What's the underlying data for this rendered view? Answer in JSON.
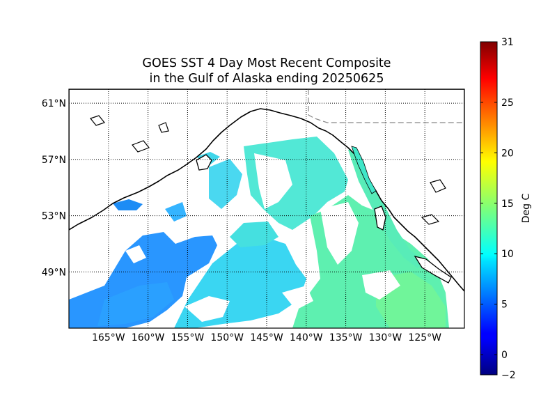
{
  "title": {
    "line1": "GOES SST 4 Day Most Recent Composite",
    "line2": "in the Gulf of Alaska ending 20250625"
  },
  "map": {
    "projection": "cylindrical",
    "lon_range": [
      -170,
      -120
    ],
    "lat_range": [
      45,
      62
    ],
    "meridians": [
      {
        "lon": -165,
        "label": "165°W"
      },
      {
        "lon": -160,
        "label": "160°W"
      },
      {
        "lon": -155,
        "label": "155°W"
      },
      {
        "lon": -150,
        "label": "150°W"
      },
      {
        "lon": -145,
        "label": "145°W"
      },
      {
        "lon": -140,
        "label": "140°W"
      },
      {
        "lon": -135,
        "label": "135°W"
      },
      {
        "lon": -130,
        "label": "130°W"
      },
      {
        "lon": -125,
        "label": "125°W"
      }
    ],
    "parallels": [
      {
        "lat": 61,
        "label": "61°N"
      },
      {
        "lat": 57,
        "label": "57°N"
      },
      {
        "lat": 53,
        "label": "53°N"
      },
      {
        "lat": 49,
        "label": "49°N"
      }
    ],
    "grid": "dotted",
    "colors": {
      "land": "#ffffff",
      "coast": "#000000",
      "no_data": "#ffffff",
      "border": "#888888"
    }
  },
  "colorbar": {
    "label": "Deg C",
    "min": -2,
    "max": 31,
    "colormap": "jet",
    "ticks": [
      {
        "value": -2,
        "label": "−2"
      },
      {
        "value": 0,
        "label": "0"
      },
      {
        "value": 5,
        "label": "5"
      },
      {
        "value": 10,
        "label": "10"
      },
      {
        "value": 15,
        "label": "15"
      },
      {
        "value": 20,
        "label": "20"
      },
      {
        "value": 25,
        "label": "25"
      },
      {
        "value": 31,
        "label": "31"
      }
    ]
  }
}
